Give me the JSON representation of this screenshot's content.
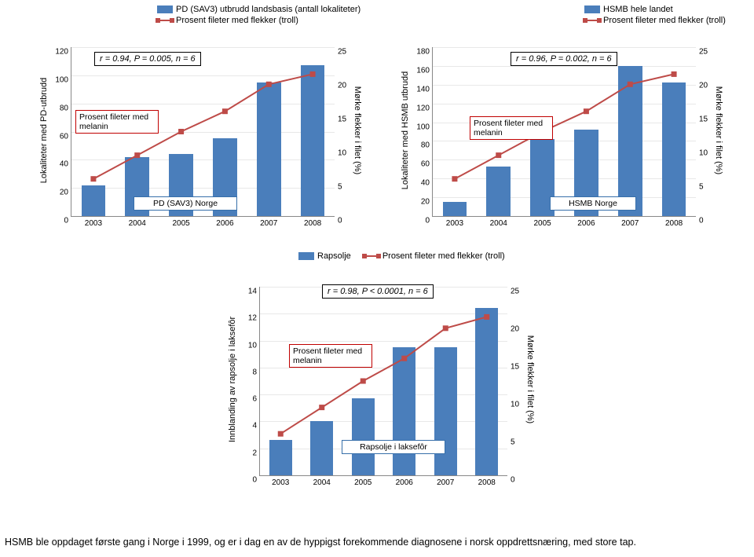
{
  "colors": {
    "bar": "#4a7ebb",
    "line": "#be4b48",
    "marker": "#be4b48",
    "grid": "#e8e8e8",
    "axis": "#888888",
    "corr_border": "#000000",
    "annotation_border": "#c00000",
    "series_border": "#376faa",
    "bg": "#ffffff"
  },
  "chart1": {
    "type": "bar+line",
    "legend": [
      {
        "label": "PD (SAV3) utbrudd landsbasis (antall lokaliteter)",
        "kind": "bar"
      },
      {
        "label": "Prosent fileter med flekker (troll)",
        "kind": "line"
      }
    ],
    "y_left_label": "Lokaliteter med PD-utbrudd",
    "y_right_label": "Mørke flekker i filet (%)",
    "y_left": {
      "min": 0,
      "max": 120,
      "step": 20
    },
    "y_right": {
      "min": 0,
      "max": 25,
      "step": 5
    },
    "x": [
      "2003",
      "2004",
      "2005",
      "2006",
      "2007",
      "2008"
    ],
    "bars": [
      22,
      42,
      44,
      55,
      95,
      107
    ],
    "line": [
      5.5,
      9,
      12.5,
      15.5,
      19.5,
      21
    ],
    "corr": "r = 0.94, P = 0.005, n = 6",
    "line_annotation": "Prosent fileter med melanin",
    "bar_annotation": "PD (SAV3) Norge",
    "bar_width": 0.55
  },
  "chart2": {
    "type": "bar+line",
    "legend": [
      {
        "label": "HSMB hele landet",
        "kind": "bar"
      },
      {
        "label": "Prosent fileter med flekker (troll)",
        "kind": "line"
      }
    ],
    "y_left_label": "Lokaliteter med HSMB utbrudd",
    "y_right_label": "Mørke flekker i filet (%)",
    "y_left": {
      "min": 0,
      "max": 180,
      "step": 20
    },
    "y_right": {
      "min": 0,
      "max": 25,
      "step": 5
    },
    "x": [
      "2003",
      "2004",
      "2005",
      "2006",
      "2007",
      "2008"
    ],
    "bars": [
      15,
      53,
      82,
      92,
      160,
      142
    ],
    "line": [
      5.5,
      9,
      12.5,
      15.5,
      19.5,
      21
    ],
    "corr": "r = 0.96, P = 0.002, n = 6",
    "line_annotation": "Prosent fileter med melanin",
    "bar_annotation": "HSMB Norge",
    "bar_width": 0.55
  },
  "chart3": {
    "type": "bar+line",
    "legend": [
      {
        "label": "Rapsolje",
        "kind": "bar"
      },
      {
        "label": "Prosent fileter med flekker (troll)",
        "kind": "line"
      }
    ],
    "y_left_label": "Innblanding av rapsolje i laksefôr",
    "y_right_label": "Mørke flekker i filet (%)",
    "y_left": {
      "min": 0,
      "max": 14,
      "step": 2
    },
    "y_right": {
      "min": 0,
      "max": 25,
      "step": 5
    },
    "x": [
      "2003",
      "2004",
      "2005",
      "2006",
      "2007",
      "2008"
    ],
    "bars": [
      2.6,
      4.0,
      5.7,
      9.5,
      9.5,
      12.4
    ],
    "line": [
      5.5,
      9,
      12.5,
      15.5,
      19.5,
      21
    ],
    "corr": "r = 0.98, P < 0.0001, n = 6",
    "line_annotation": "Prosent fileter med melanin",
    "bar_annotation": "Rapsolje i laksefôr",
    "bar_width": 0.55
  },
  "footnote": "HSMB ble oppdaget første gang i Norge i 1999, og er i dag en av de hyppigst forekommende diagnosene i norsk oppdrettsnæring, med store tap."
}
